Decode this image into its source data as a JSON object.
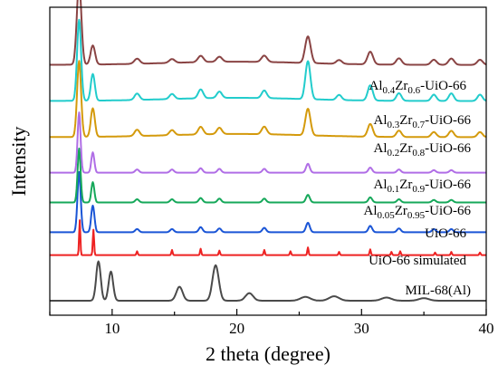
{
  "chart_data": {
    "type": "line",
    "xlabel": "2 theta (degree)",
    "ylabel": "Intensity",
    "xlim": [
      5,
      40
    ],
    "x_ticks": [
      10,
      20,
      30,
      40
    ],
    "y_ticks_shown": false,
    "grid": false,
    "legend": "none (labels placed at right above each trace)",
    "series": [
      {
        "name": "MIL-68(Al)",
        "name_parts": [
          [
            "MIL-68(Al)",
            ""
          ]
        ],
        "color": "#4a4a4a",
        "offset": 0,
        "scale": 1.0,
        "baseline": 0.0,
        "peaks": [
          [
            8.9,
            0.62,
            0.18
          ],
          [
            9.9,
            0.46,
            0.18
          ],
          [
            15.4,
            0.22,
            0.25
          ],
          [
            18.3,
            0.56,
            0.25
          ],
          [
            21.0,
            0.12,
            0.3
          ],
          [
            25.5,
            0.06,
            0.4
          ],
          [
            27.8,
            0.07,
            0.4
          ],
          [
            32.0,
            0.05,
            0.4
          ],
          [
            35.0,
            0.04,
            0.4
          ]
        ]
      },
      {
        "name": "UiO-66 simulated",
        "name_parts": [
          [
            "UiO-66 simulated",
            ""
          ]
        ],
        "color": "#ee2222",
        "offset": 0.72,
        "scale": 1.0,
        "baseline": 0.0,
        "peaks": [
          [
            7.4,
            0.55,
            0.05
          ],
          [
            8.5,
            0.4,
            0.05
          ],
          [
            12.0,
            0.06,
            0.05
          ],
          [
            14.8,
            0.08,
            0.05
          ],
          [
            17.1,
            0.1,
            0.05
          ],
          [
            18.6,
            0.07,
            0.05
          ],
          [
            22.2,
            0.08,
            0.05
          ],
          [
            24.3,
            0.06,
            0.05
          ],
          [
            25.7,
            0.12,
            0.05
          ],
          [
            28.2,
            0.05,
            0.05
          ],
          [
            30.7,
            0.09,
            0.05
          ],
          [
            32.4,
            0.05,
            0.05
          ],
          [
            33.1,
            0.06,
            0.05
          ],
          [
            35.9,
            0.04,
            0.05
          ],
          [
            37.2,
            0.05,
            0.05
          ],
          [
            39.5,
            0.04,
            0.05
          ]
        ]
      },
      {
        "name": "UiO-66",
        "name_parts": [
          [
            "UiO-66",
            ""
          ]
        ],
        "color": "#1a55d6",
        "offset": 1.08,
        "scale": 1.0,
        "baseline": 0.0,
        "peaks": [
          [
            7.35,
            0.95,
            0.13
          ],
          [
            8.45,
            0.42,
            0.13
          ],
          [
            12.0,
            0.05,
            0.15
          ],
          [
            14.8,
            0.05,
            0.15
          ],
          [
            17.1,
            0.08,
            0.15
          ],
          [
            18.6,
            0.06,
            0.15
          ],
          [
            22.2,
            0.07,
            0.15
          ],
          [
            25.7,
            0.15,
            0.15
          ],
          [
            30.7,
            0.1,
            0.15
          ],
          [
            33.0,
            0.06,
            0.15
          ],
          [
            35.8,
            0.05,
            0.15
          ],
          [
            37.2,
            0.05,
            0.15
          ]
        ]
      },
      {
        "name": "Al0.05Zr0.95-UiO-66",
        "name_parts": [
          [
            "Al",
            ""
          ],
          [
            "0.05",
            "sub"
          ],
          [
            "Zr",
            ""
          ],
          [
            "0.95",
            "sub"
          ],
          [
            "-UiO-66",
            ""
          ]
        ],
        "color": "#16a85a",
        "offset": 1.55,
        "scale": 1.0,
        "baseline": 0.0,
        "peaks": [
          [
            7.35,
            0.85,
            0.12
          ],
          [
            8.45,
            0.32,
            0.12
          ],
          [
            12.0,
            0.05,
            0.15
          ],
          [
            14.8,
            0.05,
            0.15
          ],
          [
            17.1,
            0.07,
            0.15
          ],
          [
            18.6,
            0.06,
            0.15
          ],
          [
            22.2,
            0.06,
            0.15
          ],
          [
            25.7,
            0.12,
            0.15
          ],
          [
            30.7,
            0.08,
            0.15
          ],
          [
            33.0,
            0.05,
            0.15
          ],
          [
            35.8,
            0.04,
            0.15
          ],
          [
            37.2,
            0.04,
            0.15
          ]
        ]
      },
      {
        "name": "Al0.1Zr0.9-UiO-66",
        "name_parts": [
          [
            "Al",
            ""
          ],
          [
            "0.1",
            "sub"
          ],
          [
            "Zr",
            ""
          ],
          [
            "0.9",
            "sub"
          ],
          [
            "-UiO-66",
            ""
          ]
        ],
        "color": "#b06ee6",
        "offset": 2.02,
        "scale": 1.0,
        "baseline": 0.0,
        "peaks": [
          [
            7.35,
            0.95,
            0.12
          ],
          [
            8.45,
            0.32,
            0.12
          ],
          [
            12.0,
            0.05,
            0.15
          ],
          [
            14.8,
            0.05,
            0.15
          ],
          [
            17.1,
            0.07,
            0.15
          ],
          [
            18.6,
            0.06,
            0.15
          ],
          [
            22.2,
            0.06,
            0.15
          ],
          [
            25.7,
            0.14,
            0.15
          ],
          [
            30.7,
            0.08,
            0.15
          ],
          [
            33.0,
            0.05,
            0.15
          ],
          [
            35.8,
            0.04,
            0.15
          ],
          [
            37.2,
            0.04,
            0.15
          ]
        ]
      },
      {
        "name": "Al0.2Zr0.8-UiO-66",
        "name_parts": [
          [
            "Al",
            ""
          ],
          [
            "0.2",
            "sub"
          ],
          [
            "Zr",
            ""
          ],
          [
            "0.8",
            "sub"
          ],
          [
            "-UiO-66",
            ""
          ]
        ],
        "color": "#d49a0c",
        "offset": 2.58,
        "scale": 1.0,
        "baseline": 0.0,
        "peaks": [
          [
            7.35,
            1.2,
            0.16
          ],
          [
            8.45,
            0.45,
            0.16
          ],
          [
            12.0,
            0.1,
            0.2
          ],
          [
            14.8,
            0.08,
            0.2
          ],
          [
            17.1,
            0.12,
            0.2
          ],
          [
            18.6,
            0.1,
            0.2
          ],
          [
            22.2,
            0.12,
            0.2
          ],
          [
            25.7,
            0.42,
            0.2
          ],
          [
            30.7,
            0.2,
            0.2
          ],
          [
            33.0,
            0.1,
            0.2
          ],
          [
            35.8,
            0.08,
            0.2
          ],
          [
            37.2,
            0.1,
            0.2
          ],
          [
            39.5,
            0.08,
            0.2
          ]
        ]
      },
      {
        "name": "Al0.3Zr0.7-UiO-66",
        "name_parts": [
          [
            "Al",
            ""
          ],
          [
            "0.3",
            "sub"
          ],
          [
            "Zr",
            ""
          ],
          [
            "0.7",
            "sub"
          ],
          [
            "-UiO-66",
            ""
          ]
        ],
        "color": "#22cccc",
        "offset": 3.15,
        "scale": 1.0,
        "baseline": 0.0,
        "peaks": [
          [
            7.35,
            1.28,
            0.16
          ],
          [
            8.45,
            0.42,
            0.16
          ],
          [
            12.0,
            0.1,
            0.2
          ],
          [
            14.8,
            0.08,
            0.2
          ],
          [
            17.1,
            0.14,
            0.2
          ],
          [
            18.6,
            0.1,
            0.2
          ],
          [
            22.2,
            0.12,
            0.2
          ],
          [
            25.7,
            0.6,
            0.2
          ],
          [
            28.2,
            0.08,
            0.2
          ],
          [
            30.7,
            0.24,
            0.2
          ],
          [
            33.0,
            0.12,
            0.2
          ],
          [
            35.8,
            0.1,
            0.2
          ],
          [
            37.2,
            0.12,
            0.2
          ],
          [
            39.5,
            0.1,
            0.2
          ]
        ]
      },
      {
        "name": "Al0.4Zr0.6-UiO-66",
        "name_parts": [
          [
            "Al",
            ""
          ],
          [
            "0.4",
            "sub"
          ],
          [
            "Zr",
            ""
          ],
          [
            "0.6",
            "sub"
          ],
          [
            "-UiO-66",
            ""
          ]
        ],
        "color": "#8a4444",
        "offset": 3.72,
        "scale": 1.0,
        "baseline": 0.0,
        "peaks": [
          [
            7.35,
            1.3,
            0.18
          ],
          [
            8.45,
            0.3,
            0.18
          ],
          [
            12.0,
            0.08,
            0.22
          ],
          [
            14.8,
            0.06,
            0.22
          ],
          [
            17.1,
            0.1,
            0.22
          ],
          [
            18.6,
            0.08,
            0.22
          ],
          [
            22.2,
            0.1,
            0.22
          ],
          [
            25.7,
            0.42,
            0.22
          ],
          [
            28.2,
            0.06,
            0.22
          ],
          [
            30.7,
            0.2,
            0.22
          ],
          [
            33.0,
            0.1,
            0.22
          ],
          [
            35.8,
            0.08,
            0.22
          ],
          [
            37.2,
            0.1,
            0.22
          ],
          [
            39.5,
            0.08,
            0.22
          ]
        ]
      }
    ]
  }
}
